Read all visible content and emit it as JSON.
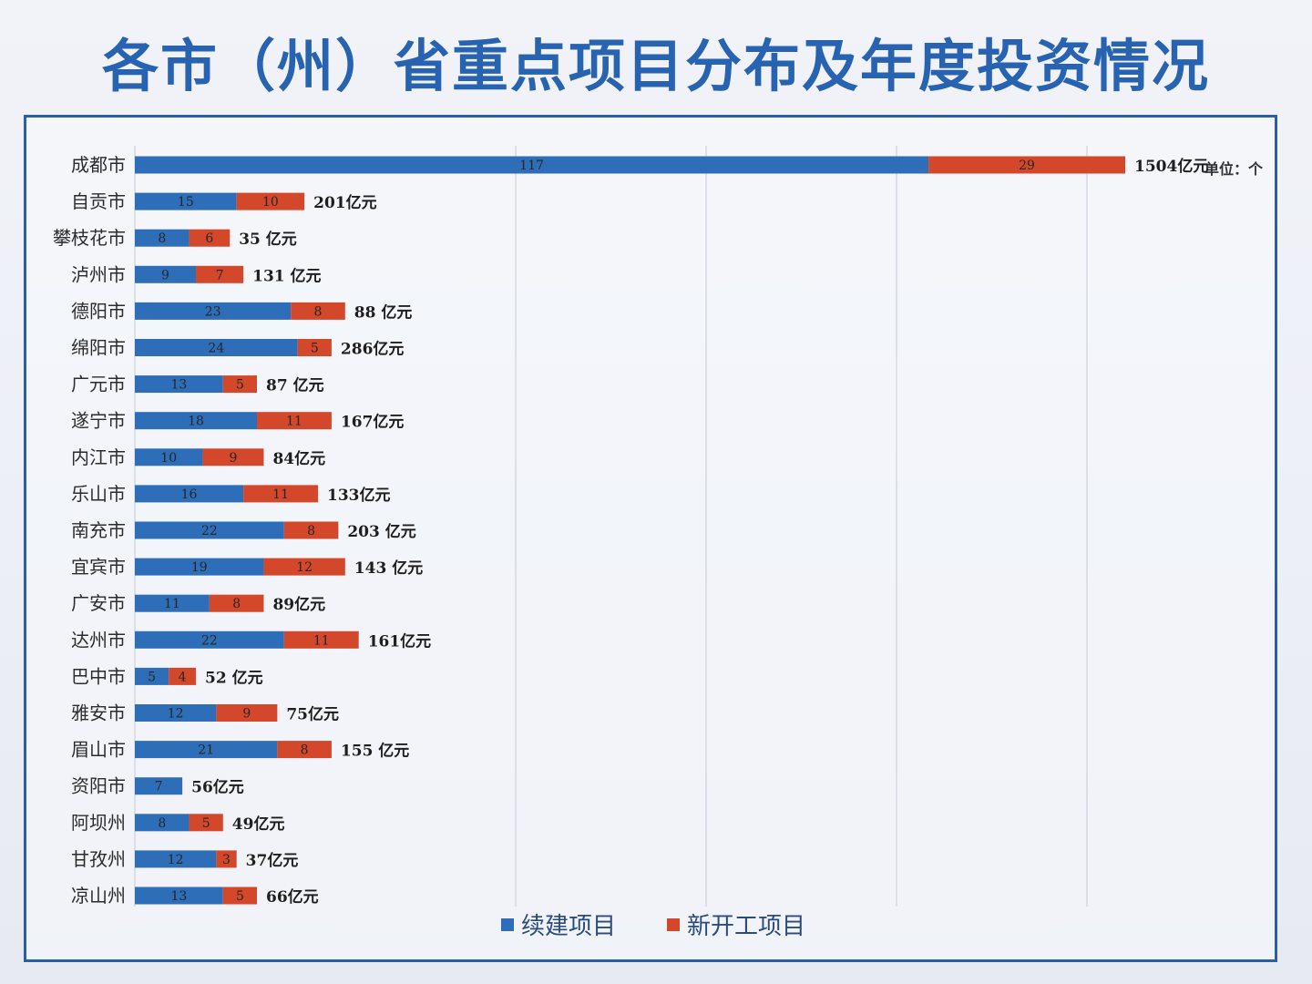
{
  "title": "各市（州）省重点项目分布及年度投资情况",
  "unit_label": "单位：个",
  "colors": {
    "title": "#2763b1",
    "frame": "#2c5ea3",
    "continued": "#2e6eb8",
    "new": "#d3472a",
    "grid": "#c4cad6"
  },
  "chart_data": {
    "type": "bar",
    "orientation": "horizontal",
    "stacked": true,
    "categories": [
      "成都市",
      "自贡市",
      "攀枝花市",
      "泸州市",
      "德阳市",
      "绵阳市",
      "广元市",
      "遂宁市",
      "内江市",
      "乐山市",
      "南充市",
      "宜宾市",
      "广安市",
      "达州市",
      "巴中市",
      "雅安市",
      "眉山市",
      "资阳市",
      "阿坝州",
      "甘孜州",
      "凉山州"
    ],
    "series": [
      {
        "name": "续建项目",
        "values": [
          117,
          15,
          8,
          9,
          23,
          24,
          13,
          18,
          10,
          16,
          22,
          19,
          11,
          22,
          5,
          12,
          21,
          7,
          8,
          12,
          13
        ]
      },
      {
        "name": "新开工项目",
        "values": [
          29,
          10,
          6,
          7,
          8,
          5,
          5,
          11,
          9,
          11,
          8,
          12,
          8,
          11,
          4,
          9,
          8,
          null,
          5,
          3,
          5
        ]
      }
    ],
    "annual_investment": [
      "1504亿元",
      "201亿元",
      "35 亿元",
      "131 亿元",
      "88 亿元",
      "286亿元",
      "87 亿元",
      "167亿元",
      "84亿元",
      "133亿元",
      "203 亿元",
      "143 亿元",
      "89亿元",
      "161亿元",
      "52 亿元",
      "75亿元",
      "155 亿元",
      "56亿元",
      "49亿元",
      "37亿元",
      "66亿元"
    ],
    "legend_position": "bottom",
    "grid": true
  }
}
